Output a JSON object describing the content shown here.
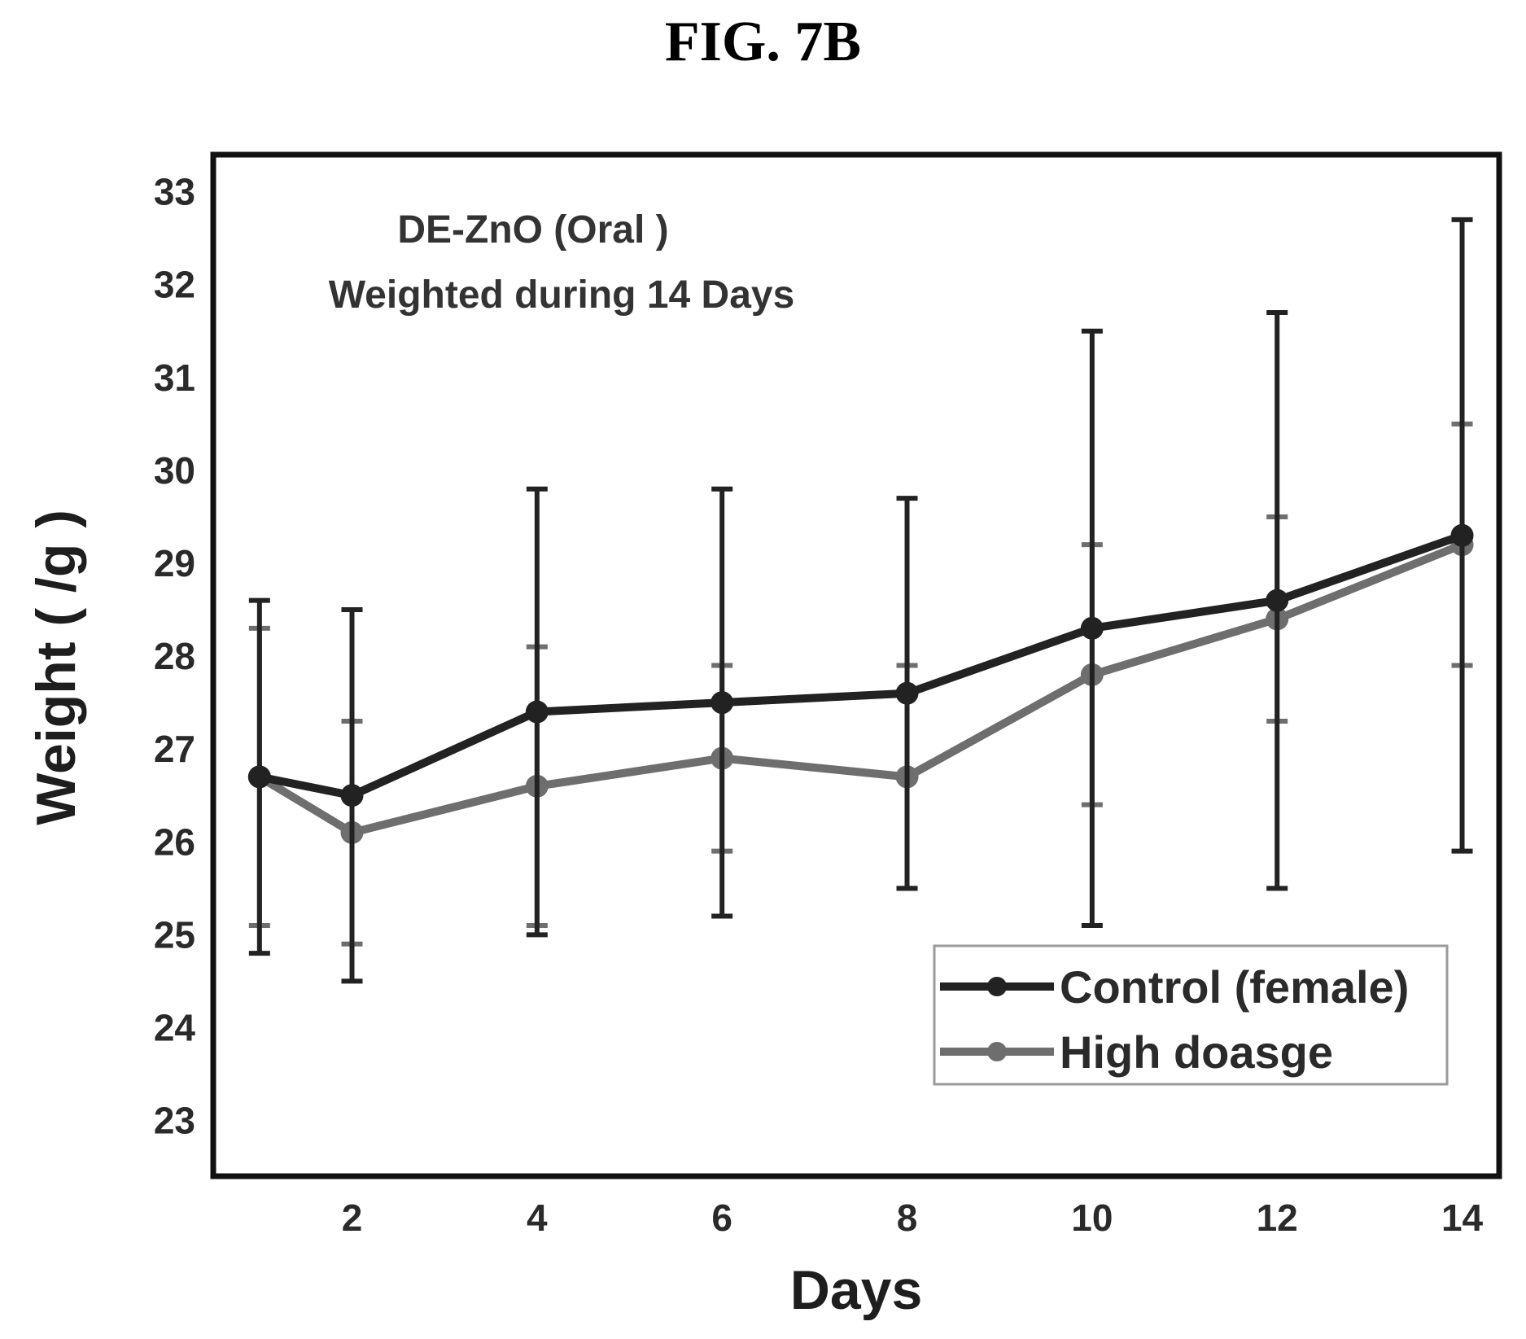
{
  "figure_label": "FIG. 7B",
  "colors": {
    "control": "#222222",
    "high_dosage": "#6e6e6e",
    "frame": "#111111"
  },
  "chart_data": {
    "type": "line",
    "annotation_lines": [
      "DE-ZnO (Oral )",
      "Weighted during 14 Days"
    ],
    "xlabel": "Days",
    "ylabel": "Weight ( /g )",
    "x": [
      1,
      2,
      4,
      6,
      8,
      10,
      12,
      14
    ],
    "x_ticks": [
      2,
      4,
      6,
      8,
      10,
      12,
      14
    ],
    "y_ticks": [
      23,
      24,
      25,
      26,
      27,
      28,
      29,
      30,
      31,
      32,
      33
    ],
    "xlim": [
      0.5,
      14.4
    ],
    "ylim": [
      22.4,
      33.4
    ],
    "grid": false,
    "legend_position": "bottom-right",
    "series": [
      {
        "name": "Control (female)",
        "color_key": "control",
        "values": [
          26.7,
          26.5,
          27.4,
          27.5,
          27.6,
          28.3,
          28.6,
          29.3
        ],
        "err_low": [
          24.8,
          24.5,
          25.0,
          25.2,
          25.5,
          25.1,
          25.5,
          25.9
        ],
        "err_high": [
          28.6,
          28.5,
          29.8,
          29.8,
          29.7,
          31.5,
          31.7,
          32.7
        ]
      },
      {
        "name": "High doasge",
        "color_key": "high_dosage",
        "values": [
          26.7,
          26.1,
          26.6,
          26.9,
          26.7,
          27.8,
          28.4,
          29.2
        ],
        "err_low": [
          25.1,
          24.9,
          25.1,
          25.9,
          25.5,
          26.4,
          27.3,
          27.9
        ],
        "err_high": [
          28.3,
          27.3,
          28.1,
          27.9,
          27.9,
          29.2,
          29.5,
          30.5
        ]
      }
    ]
  }
}
